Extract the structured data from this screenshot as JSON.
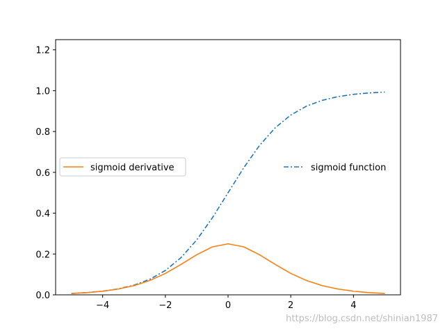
{
  "chart_data": {
    "type": "line",
    "x": [
      -5,
      -4.5,
      -4,
      -3.5,
      -3,
      -2.5,
      -2,
      -1.5,
      -1,
      -0.5,
      0,
      0.5,
      1,
      1.5,
      2,
      2.5,
      3,
      3.5,
      4,
      4.5,
      5
    ],
    "series": [
      {
        "name": "sigmoid function",
        "values": [
          0.0067,
          0.011,
          0.018,
          0.0293,
          0.0474,
          0.0759,
          0.1192,
          0.1824,
          0.2689,
          0.3775,
          0.5,
          0.6225,
          0.7311,
          0.8176,
          0.8808,
          0.9241,
          0.9526,
          0.9707,
          0.982,
          0.989,
          0.9933
        ],
        "color": "#1f77b4",
        "linestyle": "dashdot"
      },
      {
        "name": "sigmoid derivative",
        "values": [
          0.0066,
          0.0109,
          0.0177,
          0.0285,
          0.0452,
          0.0701,
          0.105,
          0.1491,
          0.1966,
          0.235,
          0.25,
          0.235,
          0.1966,
          0.1491,
          0.105,
          0.0701,
          0.0452,
          0.0285,
          0.0177,
          0.0109,
          0.0066
        ],
        "color": "#ff7f0e",
        "linestyle": "solid"
      }
    ],
    "xlim": [
      -5.5,
      5.5
    ],
    "ylim": [
      0,
      1.25
    ],
    "xticks": [
      -4,
      -2,
      0,
      2,
      4
    ],
    "xtick_labels": [
      "−4",
      "−2",
      "0",
      "2",
      "4"
    ],
    "yticks": [
      0.0,
      0.2,
      0.4,
      0.6,
      0.8,
      1.0,
      1.2
    ],
    "ytick_labels": [
      "0.0",
      "0.2",
      "0.4",
      "0.6",
      "0.8",
      "1.0",
      "1.2"
    ],
    "legends": [
      {
        "label": "sigmoid derivative",
        "placement": "center-left",
        "frame": true
      },
      {
        "label": "sigmoid function",
        "placement": "center-right",
        "frame": false
      }
    ],
    "grid": false
  },
  "watermark": "https://blog.csdn.net/shinian1987"
}
